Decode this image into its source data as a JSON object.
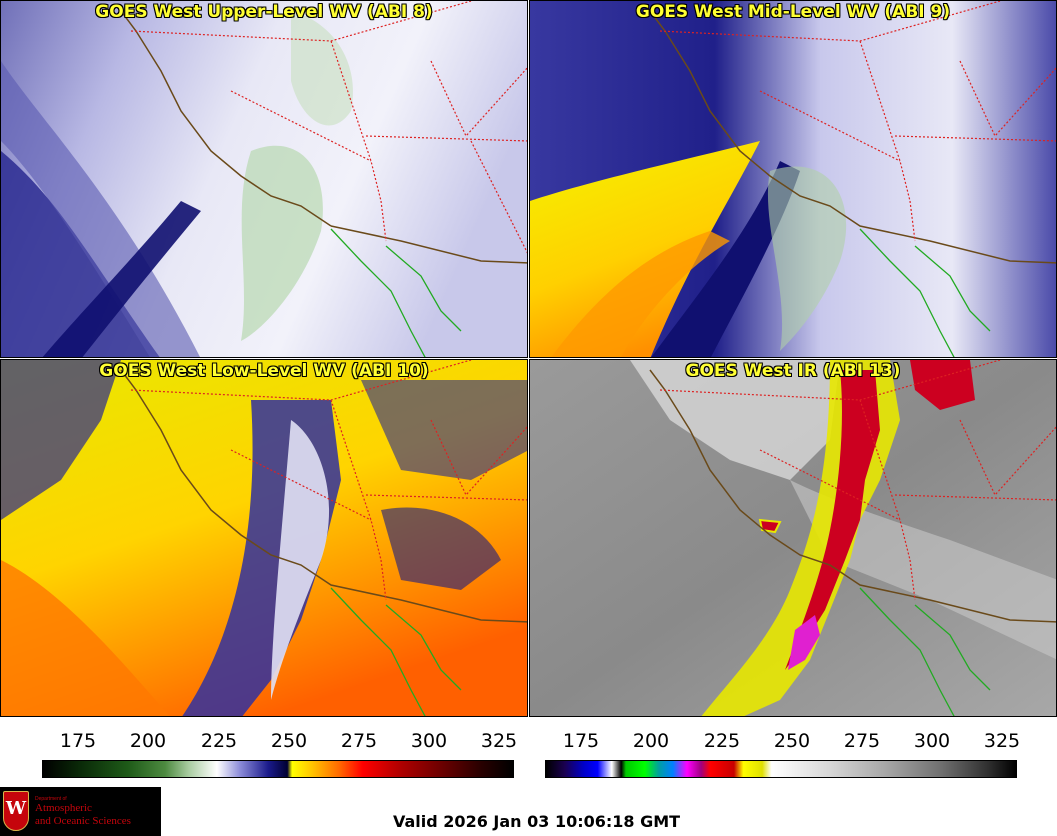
{
  "panels": [
    {
      "title": "GOES West Upper-Level WV (ABI 8)"
    },
    {
      "title": "GOES West Mid-Level WV (ABI 9)"
    },
    {
      "title": "GOES West Low-Level WV (ABI 10)"
    },
    {
      "title": "GOES West IR (ABI 13)"
    }
  ],
  "colorbars": [
    {
      "ticks": [
        "175",
        "200",
        "225",
        "250",
        "275",
        "300",
        "325"
      ]
    },
    {
      "ticks": [
        "175",
        "200",
        "225",
        "250",
        "275",
        "300",
        "325"
      ]
    }
  ],
  "logo": {
    "line_small": "Department of",
    "line1": "Atmospheric",
    "line2": "and Oceanic Sciences",
    "crest_letter": "W"
  },
  "valid_time": "Valid 2026 Jan 03 10:06:18 GMT"
}
